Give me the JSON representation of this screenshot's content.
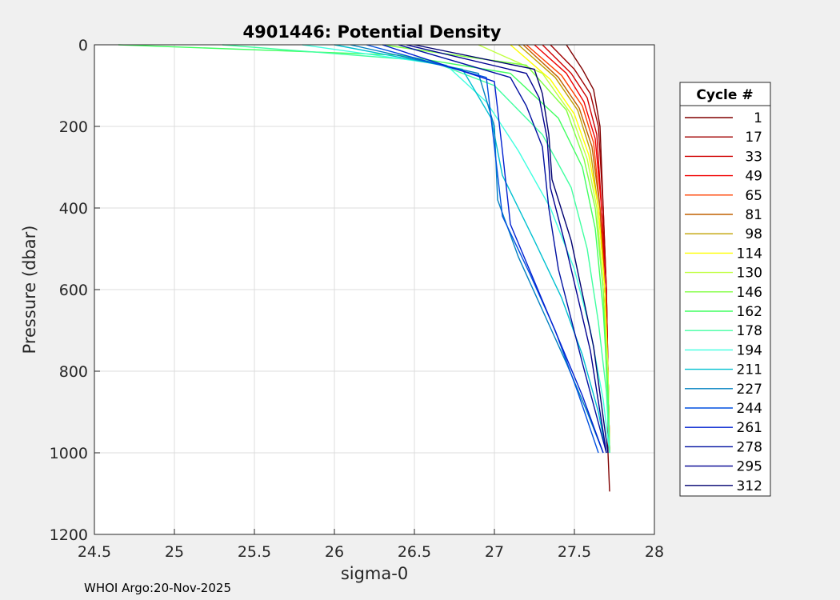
{
  "chart_data": {
    "type": "line",
    "title": "4901446: Potential Density",
    "xlabel": "sigma-0",
    "ylabel": "Pressure (dbar)",
    "xlim": [
      24.5,
      28
    ],
    "ylim": [
      0,
      1200
    ],
    "y_reversed": true,
    "grid": true,
    "xticks": [
      "24.5",
      "25",
      "25.5",
      "26",
      "26.5",
      "27",
      "27.5",
      "28"
    ],
    "yticks": [
      "0",
      "200",
      "400",
      "600",
      "800",
      "1000",
      "1200"
    ],
    "legend_title": "Cycle #",
    "legend_position": "right",
    "series": [
      {
        "name": "1",
        "color": "#800000",
        "x": [
          27.45,
          27.55,
          27.62,
          27.66,
          27.68,
          27.7,
          27.71,
          27.71,
          27.72
        ],
        "y": [
          0,
          60,
          110,
          200,
          400,
          600,
          800,
          1000,
          1095
        ]
      },
      {
        "name": "17",
        "color": "#a00000",
        "x": [
          27.35,
          27.5,
          27.6,
          27.65,
          27.68,
          27.7,
          27.71,
          27.72
        ],
        "y": [
          0,
          60,
          120,
          200,
          400,
          600,
          800,
          1000
        ]
      },
      {
        "name": "33",
        "color": "#d00000",
        "x": [
          27.3,
          27.48,
          27.58,
          27.64,
          27.67,
          27.7,
          27.71,
          27.72
        ],
        "y": [
          0,
          70,
          130,
          220,
          400,
          600,
          800,
          1000
        ]
      },
      {
        "name": "49",
        "color": "#f00000",
        "x": [
          27.25,
          27.45,
          27.56,
          27.63,
          27.67,
          27.69,
          27.71,
          27.72
        ],
        "y": [
          0,
          70,
          140,
          230,
          400,
          600,
          800,
          1000
        ]
      },
      {
        "name": "65",
        "color": "#ff4000",
        "x": [
          27.2,
          27.42,
          27.55,
          27.62,
          27.66,
          27.69,
          27.71,
          27.72
        ],
        "y": [
          0,
          75,
          150,
          240,
          400,
          600,
          800,
          1000
        ]
      },
      {
        "name": "81",
        "color": "#c06000",
        "x": [
          27.18,
          27.4,
          27.53,
          27.61,
          27.66,
          27.69,
          27.71,
          27.72
        ],
        "y": [
          0,
          80,
          155,
          250,
          400,
          600,
          800,
          1000
        ]
      },
      {
        "name": "98",
        "color": "#c0a000",
        "x": [
          27.15,
          27.38,
          27.52,
          27.6,
          27.65,
          27.69,
          27.71,
          27.72
        ],
        "y": [
          0,
          80,
          160,
          260,
          400,
          600,
          800,
          1000
        ]
      },
      {
        "name": "114",
        "color": "#ffff00",
        "x": [
          27.1,
          27.35,
          27.5,
          27.59,
          27.65,
          27.69,
          27.71,
          27.72
        ],
        "y": [
          0,
          85,
          170,
          270,
          400,
          600,
          800,
          1000
        ]
      },
      {
        "name": "130",
        "color": "#c0ff40",
        "x": [
          26.9,
          27.3,
          27.48,
          27.58,
          27.64,
          27.68,
          27.71,
          27.72
        ],
        "y": [
          0,
          70,
          170,
          280,
          400,
          600,
          800,
          1000
        ]
      },
      {
        "name": "146",
        "color": "#80ff40",
        "x": [
          26.3,
          27.2,
          27.45,
          27.56,
          27.63,
          27.68,
          27.7,
          27.72
        ],
        "y": [
          0,
          50,
          160,
          280,
          400,
          600,
          800,
          1000
        ]
      },
      {
        "name": "162",
        "color": "#40ff60",
        "x": [
          24.65,
          26.4,
          27.1,
          27.4,
          27.55,
          27.63,
          27.68,
          27.71,
          27.72
        ],
        "y": [
          0,
          25,
          70,
          180,
          300,
          450,
          650,
          850,
          1000
        ]
      },
      {
        "name": "178",
        "color": "#40ffa0",
        "x": [
          25.3,
          26.6,
          27.0,
          27.3,
          27.48,
          27.58,
          27.65,
          27.7,
          27.72
        ],
        "y": [
          0,
          40,
          100,
          220,
          350,
          500,
          680,
          850,
          1000
        ]
      },
      {
        "name": "194",
        "color": "#40ffe0",
        "x": [
          25.8,
          26.7,
          26.95,
          27.15,
          27.35,
          27.5,
          27.6,
          27.68,
          27.72
        ],
        "y": [
          0,
          50,
          140,
          260,
          400,
          550,
          700,
          870,
          1000
        ]
      },
      {
        "name": "211",
        "color": "#00c0d0",
        "x": [
          26.0,
          26.8,
          26.98,
          27.05,
          27.25,
          27.42,
          27.55,
          27.65,
          27.7
        ],
        "y": [
          0,
          60,
          180,
          320,
          480,
          620,
          760,
          900,
          1000
        ]
      },
      {
        "name": "227",
        "color": "#0080c0",
        "x": [
          26.1,
          26.9,
          27.0,
          27.02,
          27.15,
          27.3,
          27.45,
          27.58,
          27.68
        ],
        "y": [
          0,
          70,
          200,
          380,
          520,
          650,
          780,
          900,
          1000
        ]
      },
      {
        "name": "244",
        "color": "#0050e0",
        "x": [
          26.2,
          26.95,
          27.0,
          27.05,
          27.22,
          27.38,
          27.52,
          27.65
        ],
        "y": [
          0,
          80,
          250,
          420,
          560,
          700,
          850,
          1000
        ]
      },
      {
        "name": "261",
        "color": "#0020d0",
        "x": [
          26.3,
          27.0,
          27.05,
          27.1,
          27.25,
          27.4,
          27.55,
          27.68
        ],
        "y": [
          0,
          90,
          260,
          440,
          580,
          720,
          860,
          1000
        ]
      },
      {
        "name": "278",
        "color": "#0010a0",
        "x": [
          26.4,
          27.1,
          27.2,
          27.3,
          27.34,
          27.4,
          27.55,
          27.7
        ],
        "y": [
          0,
          80,
          150,
          250,
          400,
          550,
          780,
          1000
        ]
      },
      {
        "name": "295",
        "color": "#000090",
        "x": [
          26.45,
          27.2,
          27.28,
          27.33,
          27.35,
          27.45,
          27.6,
          27.7
        ],
        "y": [
          0,
          70,
          130,
          230,
          350,
          500,
          750,
          1000
        ]
      },
      {
        "name": "312",
        "color": "#000070",
        "x": [
          26.5,
          27.25,
          27.3,
          27.34,
          27.36,
          27.48,
          27.62,
          27.71
        ],
        "y": [
          0,
          60,
          120,
          220,
          330,
          480,
          740,
          1000
        ]
      }
    ]
  },
  "footer": "WHOI Argo:20-Nov-2025"
}
